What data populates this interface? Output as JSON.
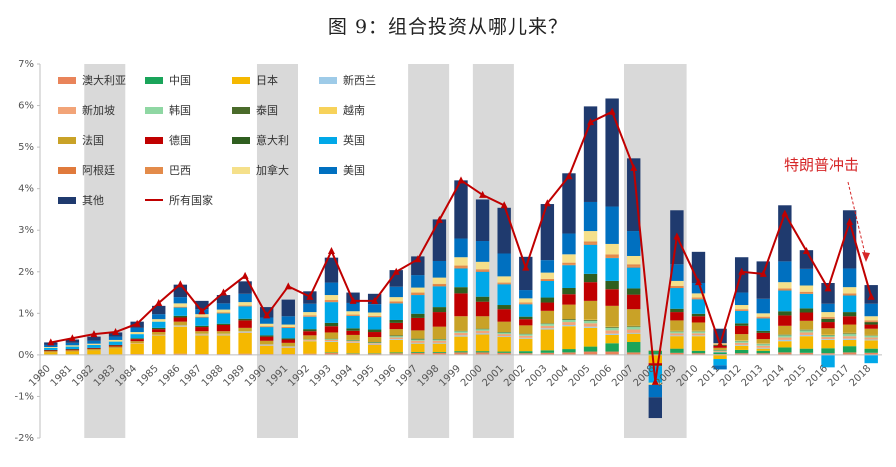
{
  "title": "图 9：组合投资从哪儿来？",
  "annotation": "特朗普冲击",
  "colors": {
    "澳大利亚": "#e9845a",
    "中国": "#1aa45a",
    "日本": "#f5b800",
    "新西兰": "#9ecbe8",
    "新加坡": "#f2a478",
    "韩国": "#8fd7a3",
    "泰国": "#4a6b2a",
    "越南": "#f7d25a",
    "法国": "#c9a227",
    "德国": "#c00000",
    "意大利": "#2f5e1f",
    "英国": "#00a8e8",
    "阿根廷": "#e07a3c",
    "巴西": "#e38b4a",
    "加拿大": "#f5e08a",
    "美国": "#0070c0",
    "其他": "#1f3a6e",
    "所有国家": "#c00000",
    "recession_band": "#d9d9d9",
    "annotation": "#d62728"
  },
  "chart_data": {
    "type": "bar",
    "title": "图 9：组合投资从哪儿来？",
    "xlabel": "",
    "ylabel": "",
    "ylim": [
      -2,
      7
    ],
    "yticks": [
      "-2%",
      "-1%",
      "0%",
      "1%",
      "2%",
      "3%",
      "4%",
      "5%",
      "6%",
      "7%"
    ],
    "categories": [
      "1980",
      "1981",
      "1982",
      "1983",
      "1984",
      "1985",
      "1986",
      "1987",
      "1988",
      "1989",
      "1990",
      "1991",
      "1992",
      "1993",
      "1994",
      "1995",
      "1996",
      "1997",
      "1998",
      "1999",
      "2000",
      "2001",
      "2002",
      "2003",
      "2004",
      "2005",
      "2006",
      "2007",
      "2008",
      "2009",
      "2010",
      "2011",
      "2012",
      "2013",
      "2014",
      "2015",
      "2016",
      "2017",
      "2018"
    ],
    "shaded_periods": [
      [
        "1982",
        "1983"
      ],
      [
        "1990",
        "1991"
      ],
      [
        "1997",
        "1998"
      ],
      [
        "2000",
        "2001"
      ],
      [
        "2007",
        "2009"
      ]
    ],
    "legend_position": "top-left",
    "series": [
      {
        "name": "澳大利亚",
        "values": [
          0.01,
          0.01,
          0.01,
          0.01,
          0.02,
          0.02,
          0.03,
          0.02,
          0.02,
          0.03,
          0.02,
          0.02,
          0.03,
          0.05,
          0.03,
          0.03,
          0.04,
          0.05,
          0.05,
          0.06,
          0.06,
          0.05,
          0.04,
          0.05,
          0.06,
          0.08,
          0.08,
          0.06,
          0.0,
          0.05,
          0.04,
          0.02,
          0.04,
          0.04,
          0.06,
          0.05,
          0.04,
          0.06,
          0.05
        ]
      },
      {
        "name": "中国",
        "values": [
          0,
          0,
          0,
          0,
          0,
          0,
          0,
          0,
          0,
          0,
          0,
          0,
          0,
          0.01,
          0.01,
          0.01,
          0.02,
          0.02,
          0.02,
          0.03,
          0.03,
          0.03,
          0.05,
          0.06,
          0.08,
          0.12,
          0.2,
          0.25,
          0.1,
          0.1,
          0.06,
          0.04,
          0.08,
          0.06,
          0.12,
          0.1,
          0.12,
          0.15,
          0.1
        ]
      },
      {
        "name": "日本",
        "values": [
          0.05,
          0.07,
          0.1,
          0.15,
          0.25,
          0.45,
          0.65,
          0.45,
          0.45,
          0.5,
          0.2,
          0.15,
          0.3,
          0.25,
          0.25,
          0.2,
          0.3,
          0.2,
          0.2,
          0.35,
          0.4,
          0.35,
          0.3,
          0.5,
          0.55,
          0.45,
          0.2,
          0.2,
          -0.2,
          0.3,
          0.35,
          -0.1,
          0.1,
          0.05,
          0.15,
          0.3,
          0.2,
          0.15,
          0.2
        ]
      },
      {
        "name": "新西兰",
        "values": [
          0,
          0,
          0,
          0,
          0,
          0.01,
          0.01,
          0.01,
          0.01,
          0.01,
          0.01,
          0.01,
          0.01,
          0.02,
          0.01,
          0.01,
          0.02,
          0.02,
          0.02,
          0.03,
          0.03,
          0.02,
          0.02,
          0.03,
          0.03,
          0.03,
          0.03,
          0.02,
          0,
          0.02,
          0.02,
          0.01,
          0.02,
          0.02,
          0.03,
          0.03,
          0.02,
          0.03,
          0.02
        ]
      },
      {
        "name": "新加坡",
        "values": [
          0,
          0,
          0,
          0,
          0.01,
          0.01,
          0.02,
          0.02,
          0.02,
          0.02,
          0.02,
          0.02,
          0.02,
          0.03,
          0.03,
          0.03,
          0.04,
          0.05,
          0.05,
          0.06,
          0.06,
          0.05,
          0.05,
          0.06,
          0.07,
          0.08,
          0.08,
          0.08,
          0.02,
          0.05,
          0.05,
          0.02,
          0.05,
          0.05,
          0.06,
          0.06,
          0.05,
          0.06,
          0.05
        ]
      },
      {
        "name": "韩国",
        "values": [
          0,
          0,
          0,
          0,
          0,
          0,
          0.01,
          0.01,
          0.01,
          0.01,
          0.01,
          0.01,
          0.01,
          0.02,
          0.02,
          0.02,
          0.03,
          0.03,
          0.03,
          0.04,
          0.04,
          0.04,
          0.04,
          0.05,
          0.05,
          0.06,
          0.06,
          0.06,
          0,
          0.04,
          0.04,
          0.02,
          0.04,
          0.04,
          0.05,
          0.05,
          0.04,
          0.05,
          0.04
        ]
      },
      {
        "name": "泰国",
        "values": [
          0,
          0,
          0,
          0,
          0,
          0,
          0,
          0,
          0,
          0,
          0,
          0,
          0,
          0.01,
          0.01,
          0.01,
          0.02,
          0.02,
          0.01,
          0.01,
          0.01,
          0.01,
          0.01,
          0.01,
          0.02,
          0.02,
          0.02,
          0.02,
          0,
          0.01,
          0.01,
          0.01,
          0.01,
          0.01,
          0.02,
          0.02,
          0.01,
          0.02,
          0.01
        ]
      },
      {
        "name": "越南",
        "values": [
          0,
          0,
          0,
          0,
          0,
          0,
          0,
          0,
          0,
          0,
          0,
          0,
          0,
          0,
          0,
          0,
          0,
          0,
          0,
          0,
          0,
          0,
          0,
          0,
          0,
          0.01,
          0.01,
          0.01,
          0,
          0.01,
          0.01,
          0,
          0.01,
          0.01,
          0.01,
          0.01,
          0.01,
          0.01,
          0.01
        ]
      },
      {
        "name": "法国",
        "values": [
          0.03,
          0.03,
          0.03,
          0.04,
          0.05,
          0.06,
          0.08,
          0.06,
          0.06,
          0.08,
          0.08,
          0.08,
          0.1,
          0.15,
          0.12,
          0.12,
          0.15,
          0.2,
          0.3,
          0.35,
          0.3,
          0.25,
          0.2,
          0.3,
          0.35,
          0.45,
          0.5,
          0.4,
          0,
          0.25,
          0.2,
          0.05,
          0.15,
          0.1,
          0.2,
          0.2,
          0.15,
          0.2,
          0.15
        ]
      },
      {
        "name": "德国",
        "values": [
          0.02,
          0.02,
          0.02,
          0.03,
          0.05,
          0.07,
          0.1,
          0.1,
          0.15,
          0.18,
          0.1,
          0.08,
          0.1,
          0.15,
          0.1,
          0.12,
          0.15,
          0.3,
          0.35,
          0.55,
          0.35,
          0.3,
          0.15,
          0.2,
          0.25,
          0.45,
          0.4,
          0.35,
          -0.05,
          0.2,
          0.15,
          0.05,
          0.2,
          0.15,
          0.25,
          0.2,
          0.15,
          0.2,
          0.1
        ]
      },
      {
        "name": "意大利",
        "values": [
          0.01,
          0.01,
          0.01,
          0.01,
          0.02,
          0.03,
          0.04,
          0.03,
          0.03,
          0.04,
          0.03,
          0.03,
          0.05,
          0.08,
          0.06,
          0.06,
          0.07,
          0.1,
          0.12,
          0.15,
          0.12,
          0.1,
          0.06,
          0.12,
          0.15,
          0.2,
          0.2,
          0.15,
          -0.02,
          0.08,
          0.06,
          0.02,
          0.06,
          0.05,
          0.1,
          0.1,
          0.08,
          0.1,
          0.06
        ]
      },
      {
        "name": "英国",
        "values": [
          0.05,
          0.06,
          0.07,
          0.08,
          0.1,
          0.15,
          0.2,
          0.2,
          0.25,
          0.3,
          0.2,
          0.25,
          0.3,
          0.5,
          0.3,
          0.3,
          0.4,
          0.45,
          0.5,
          0.45,
          0.6,
          0.5,
          0.3,
          0.4,
          0.55,
          0.7,
          0.55,
          0.5,
          -0.4,
          0.5,
          0.35,
          -0.15,
          0.3,
          0.3,
          0.5,
          0.35,
          -0.3,
          0.4,
          -0.2
        ]
      },
      {
        "name": "阿根廷",
        "values": [
          0,
          0,
          0,
          0,
          0,
          0,
          0.01,
          0.01,
          0.01,
          0.01,
          0.01,
          0.01,
          0.01,
          0.02,
          0.01,
          0.01,
          0.02,
          0.02,
          0.02,
          0.02,
          0.02,
          0.01,
          0.01,
          0.01,
          0.01,
          0.02,
          0.02,
          0.02,
          0,
          0.01,
          0.01,
          0,
          0.01,
          0.01,
          0.01,
          0.01,
          0.01,
          0.01,
          0.01
        ]
      },
      {
        "name": "巴西",
        "values": [
          0,
          0,
          0,
          0,
          0,
          0,
          0.01,
          0.01,
          0.01,
          0.01,
          0.01,
          0.01,
          0.02,
          0.03,
          0.02,
          0.02,
          0.03,
          0.04,
          0.04,
          0.05,
          0.04,
          0.03,
          0.03,
          0.04,
          0.05,
          0.06,
          0.07,
          0.06,
          0,
          0.04,
          0.03,
          0.01,
          0.03,
          0.03,
          0.04,
          0.04,
          0.03,
          0.04,
          0.03
        ]
      },
      {
        "name": "加拿大",
        "values": [
          0.02,
          0.03,
          0.03,
          0.04,
          0.05,
          0.06,
          0.08,
          0.06,
          0.07,
          0.08,
          0.06,
          0.06,
          0.08,
          0.12,
          0.08,
          0.08,
          0.1,
          0.12,
          0.15,
          0.2,
          0.18,
          0.15,
          0.1,
          0.15,
          0.2,
          0.25,
          0.25,
          0.2,
          -0.05,
          0.12,
          0.1,
          0.03,
          0.1,
          0.08,
          0.15,
          0.15,
          0.12,
          0.15,
          0.1
        ]
      },
      {
        "name": "美国",
        "values": [
          0.05,
          0.06,
          0.07,
          0.08,
          0.1,
          0.12,
          0.15,
          0.12,
          0.15,
          0.2,
          0.15,
          0.2,
          0.2,
          0.3,
          0.2,
          0.2,
          0.25,
          0.3,
          0.4,
          0.45,
          0.5,
          0.55,
          0.2,
          0.3,
          0.5,
          0.7,
          0.9,
          0.6,
          -0.3,
          0.4,
          0.25,
          -0.1,
          0.3,
          0.35,
          0.5,
          0.4,
          0.2,
          0.45,
          0.3
        ]
      },
      {
        "name": "其他",
        "values": [
          0.06,
          0.08,
          0.1,
          0.1,
          0.15,
          0.2,
          0.3,
          0.2,
          0.2,
          0.3,
          0.25,
          0.4,
          0.3,
          0.6,
          0.25,
          0.25,
          0.4,
          0.45,
          1.0,
          1.4,
          1.0,
          1.1,
          0.8,
          1.35,
          1.45,
          2.3,
          2.6,
          1.75,
          -0.5,
          1.3,
          0.75,
          0.35,
          0.85,
          0.9,
          1.35,
          0.45,
          0.5,
          1.4,
          0.45
        ]
      },
      {
        "name": "所有国家",
        "type": "line",
        "values": [
          0.3,
          0.4,
          0.5,
          0.55,
          0.75,
          1.25,
          1.7,
          1.05,
          1.5,
          1.9,
          0.95,
          1.65,
          1.4,
          2.5,
          1.3,
          1.3,
          2.0,
          2.3,
          3.25,
          4.2,
          3.85,
          3.6,
          2.1,
          3.65,
          4.3,
          5.6,
          5.85,
          4.5,
          -0.65,
          2.85,
          1.75,
          0.25,
          2.0,
          1.95,
          3.4,
          2.5,
          1.6,
          3.2,
          1.4
        ]
      }
    ]
  }
}
